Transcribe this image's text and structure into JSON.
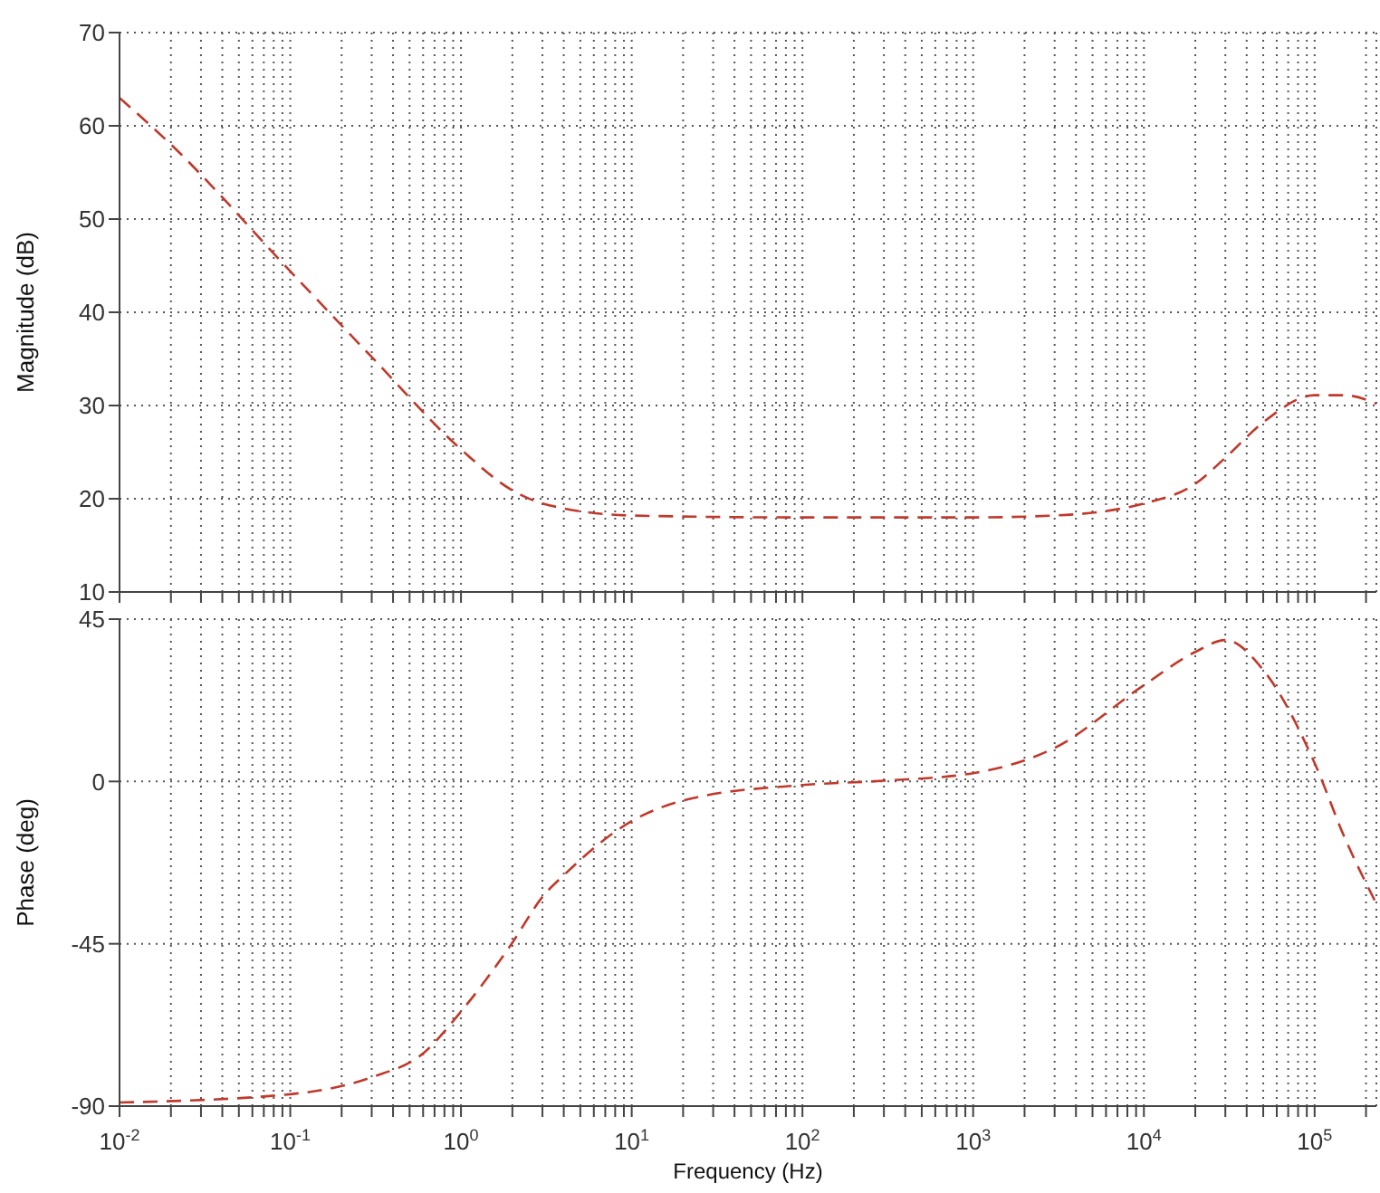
{
  "chart_data": [
    {
      "type": "line",
      "ylabel": "Magnitude (dB)",
      "log": "x",
      "grid": true,
      "tick_labels": "y",
      "line_style": "dashed",
      "marker": "none",
      "xlim": [
        0.01,
        230000
      ],
      "ylim": [
        10,
        70
      ],
      "yticks": [
        10,
        20,
        30,
        40,
        50,
        60,
        70
      ],
      "xticks": [
        {
          "value": 0.01,
          "label": null
        },
        {
          "value": 0.02,
          "label": null
        },
        {
          "value": 0.03,
          "label": null
        },
        {
          "value": 0.04,
          "label": null
        },
        {
          "value": 0.05,
          "label": null
        },
        {
          "value": 0.06,
          "label": null
        },
        {
          "value": 0.07,
          "label": null
        },
        {
          "value": 0.08,
          "label": null
        },
        {
          "value": 0.09,
          "label": null
        },
        {
          "value": 0.1,
          "label": null
        },
        {
          "value": 0.2,
          "label": null
        },
        {
          "value": 0.3,
          "label": null
        },
        {
          "value": 0.4,
          "label": null
        },
        {
          "value": 0.5,
          "label": null
        },
        {
          "value": 0.6,
          "label": null
        },
        {
          "value": 0.7,
          "label": null
        },
        {
          "value": 0.8,
          "label": null
        },
        {
          "value": 0.9,
          "label": null
        },
        {
          "value": 1,
          "label": null
        },
        {
          "value": 2,
          "label": null
        },
        {
          "value": 3,
          "label": null
        },
        {
          "value": 4,
          "label": null
        },
        {
          "value": 5,
          "label": null
        },
        {
          "value": 6,
          "label": null
        },
        {
          "value": 7,
          "label": null
        },
        {
          "value": 8,
          "label": null
        },
        {
          "value": 9,
          "label": null
        },
        {
          "value": 10,
          "label": null
        },
        {
          "value": 20,
          "label": null
        },
        {
          "value": 30,
          "label": null
        },
        {
          "value": 40,
          "label": null
        },
        {
          "value": 50,
          "label": null
        },
        {
          "value": 60,
          "label": null
        },
        {
          "value": 70,
          "label": null
        },
        {
          "value": 80,
          "label": null
        },
        {
          "value": 90,
          "label": null
        },
        {
          "value": 100,
          "label": null
        },
        {
          "value": 200,
          "label": null
        },
        {
          "value": 300,
          "label": null
        },
        {
          "value": 400,
          "label": null
        },
        {
          "value": 500,
          "label": null
        },
        {
          "value": 600,
          "label": null
        },
        {
          "value": 700,
          "label": null
        },
        {
          "value": 800,
          "label": null
        },
        {
          "value": 900,
          "label": null
        },
        {
          "value": 1000,
          "label": null
        },
        {
          "value": 2000,
          "label": null
        },
        {
          "value": 3000,
          "label": null
        },
        {
          "value": 4000,
          "label": null
        },
        {
          "value": 5000,
          "label": null
        },
        {
          "value": 6000,
          "label": null
        },
        {
          "value": 7000,
          "label": null
        },
        {
          "value": 8000,
          "label": null
        },
        {
          "value": 9000,
          "label": null
        },
        {
          "value": 10000,
          "label": null
        },
        {
          "value": 20000,
          "label": null
        },
        {
          "value": 30000,
          "label": null
        },
        {
          "value": 40000,
          "label": null
        },
        {
          "value": 50000,
          "label": null
        },
        {
          "value": 60000,
          "label": null
        },
        {
          "value": 70000,
          "label": null
        },
        {
          "value": 80000,
          "label": null
        },
        {
          "value": 90000,
          "label": null
        },
        {
          "value": 100000,
          "label": null
        },
        {
          "value": 200000,
          "label": null
        }
      ],
      "x": [
        0.01,
        0.02,
        0.1,
        0.3,
        1,
        2,
        3,
        10,
        100,
        1000,
        3000,
        10000,
        20000,
        30000,
        50000,
        100000,
        150000,
        230000
      ],
      "series": [
        {
          "color": "#c0392b",
          "values": [
            63,
            58,
            44.4,
            35.2,
            25.3,
            20.9,
            19.5,
            18.2,
            18,
            18,
            18.2,
            19.5,
            21.6,
            24.4,
            28.2,
            31.1,
            31.1,
            30.2
          ]
        }
      ]
    },
    {
      "type": "line",
      "ylabel": "Phase (deg)",
      "xlabel": "Frequency  (Hz)",
      "log": "x",
      "grid": true,
      "line_style": "dashed",
      "marker": "none",
      "xlim": [
        0.01,
        230000
      ],
      "ylim": [
        -90,
        45
      ],
      "yticks": [
        -90,
        -45,
        0,
        45
      ],
      "xticks": [
        {
          "value": 0.01,
          "label": "10$^{-2}$"
        },
        {
          "value": 0.02,
          "label": null
        },
        {
          "value": 0.03,
          "label": null
        },
        {
          "value": 0.04,
          "label": null
        },
        {
          "value": 0.05,
          "label": null
        },
        {
          "value": 0.06,
          "label": null
        },
        {
          "value": 0.07,
          "label": null
        },
        {
          "value": 0.08,
          "label": null
        },
        {
          "value": 0.09,
          "label": null
        },
        {
          "value": 0.1,
          "label": "10$^{-1}$"
        },
        {
          "value": 0.2,
          "label": null
        },
        {
          "value": 0.3,
          "label": null
        },
        {
          "value": 0.4,
          "label": null
        },
        {
          "value": 0.5,
          "label": null
        },
        {
          "value": 0.6,
          "label": null
        },
        {
          "value": 0.7,
          "label": null
        },
        {
          "value": 0.8,
          "label": null
        },
        {
          "value": 0.9,
          "label": null
        },
        {
          "value": 1,
          "label": "10$^{0}$"
        },
        {
          "value": 2,
          "label": null
        },
        {
          "value": 3,
          "label": null
        },
        {
          "value": 4,
          "label": null
        },
        {
          "value": 5,
          "label": null
        },
        {
          "value": 6,
          "label": null
        },
        {
          "value": 7,
          "label": null
        },
        {
          "value": 8,
          "label": null
        },
        {
          "value": 9,
          "label": null
        },
        {
          "value": 10,
          "label": "10$^{1}$"
        },
        {
          "value": 20,
          "label": null
        },
        {
          "value": 30,
          "label": null
        },
        {
          "value": 40,
          "label": null
        },
        {
          "value": 50,
          "label": null
        },
        {
          "value": 60,
          "label": null
        },
        {
          "value": 70,
          "label": null
        },
        {
          "value": 80,
          "label": null
        },
        {
          "value": 90,
          "label": null
        },
        {
          "value": 100,
          "label": "10$^{2}$"
        },
        {
          "value": 200,
          "label": null
        },
        {
          "value": 300,
          "label": null
        },
        {
          "value": 400,
          "label": null
        },
        {
          "value": 500,
          "label": null
        },
        {
          "value": 600,
          "label": null
        },
        {
          "value": 700,
          "label": null
        },
        {
          "value": 800,
          "label": null
        },
        {
          "value": 900,
          "label": null
        },
        {
          "value": 1000,
          "label": "10$^{3}$"
        },
        {
          "value": 2000,
          "label": null
        },
        {
          "value": 3000,
          "label": null
        },
        {
          "value": 4000,
          "label": null
        },
        {
          "value": 5000,
          "label": null
        },
        {
          "value": 6000,
          "label": null
        },
        {
          "value": 7000,
          "label": null
        },
        {
          "value": 8000,
          "label": null
        },
        {
          "value": 9000,
          "label": null
        },
        {
          "value": 10000,
          "label": "10$^{4}$"
        },
        {
          "value": 20000,
          "label": null
        },
        {
          "value": 30000,
          "label": null
        },
        {
          "value": 40000,
          "label": null
        },
        {
          "value": 50000,
          "label": null
        },
        {
          "value": 60000,
          "label": null
        },
        {
          "value": 70000,
          "label": null
        },
        {
          "value": 80000,
          "label": null
        },
        {
          "value": 90000,
          "label": null
        },
        {
          "value": 100000,
          "label": "10$^{5}$"
        },
        {
          "value": 200000,
          "label": null
        }
      ],
      "x": [
        0.01,
        0.1,
        0.3,
        0.6,
        1,
        2,
        3,
        4,
        10,
        22,
        100,
        300,
        1000,
        3000,
        10000,
        20000,
        30000,
        50000,
        100000,
        150000,
        230000
      ],
      "series": [
        {
          "color": "#c0392b",
          "values": [
            -89,
            -86.7,
            -82,
            -75.4,
            -63.8,
            -44.7,
            -32,
            -26,
            -11,
            -4.8,
            -1,
            0.2,
            2.3,
            9.3,
            26.7,
            35.9,
            39.2,
            30.9,
            5.1,
            -15.6,
            -33.9
          ]
        }
      ]
    }
  ]
}
